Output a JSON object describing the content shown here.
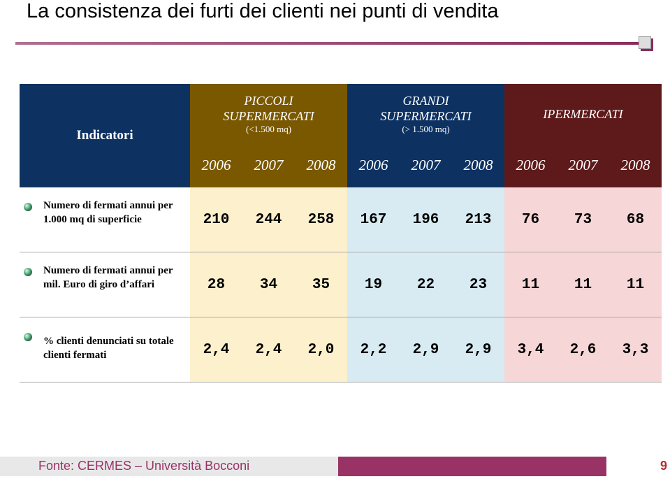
{
  "title": "La consistenza dei furti dei clienti nei punti di vendita",
  "table": {
    "corner": "Indicatori",
    "groups": [
      {
        "name": "PICCOLI SUPERMERCATI",
        "sub": "(<1.500 mq)",
        "years": [
          2006,
          2007,
          2008
        ]
      },
      {
        "name": "GRANDI SUPERMERCATI",
        "sub": "(> 1.500 mq)",
        "years": [
          2006,
          2007,
          2008
        ]
      },
      {
        "name": "IPERMERCATI",
        "years": [
          2006,
          2007,
          2008
        ]
      }
    ],
    "rows": [
      {
        "label": "Numero di fermati annui per 1.000 mq di superficie",
        "values": [
          210,
          244,
          258,
          167,
          196,
          213,
          76,
          73,
          68
        ]
      },
      {
        "label": "Numero di fermati annui per mil. Euro di giro d’affari",
        "values": [
          28,
          34,
          35,
          19,
          22,
          23,
          11,
          11,
          11
        ]
      },
      {
        "label": "% clienti denunciati su totale clienti fermati",
        "values": [
          "2,4",
          "2,4",
          "2,0",
          "2,2",
          "2,9",
          "2,9",
          "3,4",
          "2,6",
          "3,3"
        ]
      }
    ]
  },
  "footer": {
    "source": "Fonte: CERMES – Università Bocconi",
    "page": "9"
  }
}
